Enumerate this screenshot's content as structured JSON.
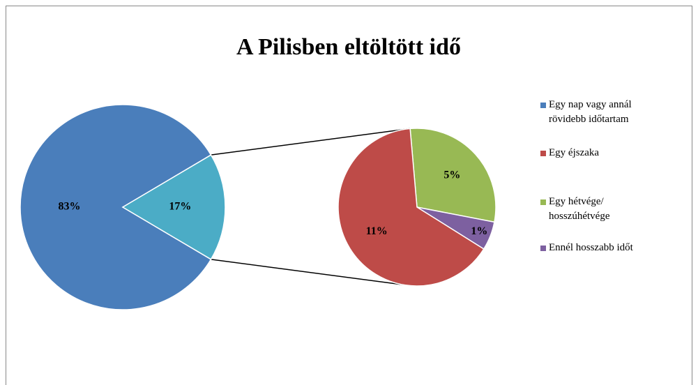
{
  "chart_data": {
    "type": "pie-of-pie",
    "title": "A Pilisben eltöltött idő",
    "categories": [
      "Egy nap vagy annál\nrövidebb időtartam",
      "Egy éjszaka",
      "Egy hétvége/\nhosszúhétvége",
      "Ennél hosszabb időt"
    ],
    "values": [
      83,
      11,
      5,
      1
    ],
    "value_labels": [
      "83%",
      "11%",
      "5%",
      "1%"
    ],
    "colors": [
      "#4a7ebb",
      "#be4b48",
      "#98b954",
      "#7d60a0"
    ],
    "other_value": 17,
    "other_value_label": "17%",
    "other_color": "#4bacc6",
    "legend": "right"
  }
}
